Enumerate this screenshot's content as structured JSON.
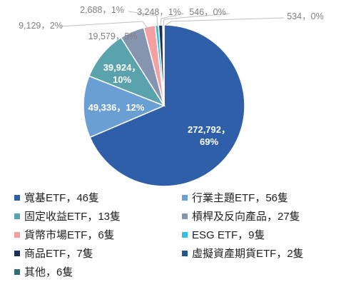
{
  "chart_data": {
    "type": "pie",
    "slices": [
      {
        "name": "寬基ETF，46隻",
        "value": 272792,
        "label": "272,792，\n69%",
        "color": "#2e5fa8"
      },
      {
        "name": "行業主題ETF，56隻",
        "value": 49336,
        "label": "49,336，12%",
        "color": "#6a9fd4"
      },
      {
        "name": "固定收益ETF，13隻",
        "value": 39924,
        "label": "39,924，\n10%",
        "color": "#5aa3ad"
      },
      {
        "name": "槓桿及反向產品，27隻",
        "value": 19579,
        "label": "19,579，5%",
        "color": "#8595b0"
      },
      {
        "name": "貨幣市場ETF，6隻",
        "value": 9129,
        "label": "9,129，2%",
        "color": "#f4a0a0"
      },
      {
        "name": "ESG ETF，9隻",
        "value": 2688,
        "label": "2,688，1%",
        "color": "#35c0e0"
      },
      {
        "name": "商品ETF，7隻",
        "value": 3248,
        "label": "3,248，1%",
        "color": "#1c2e57"
      },
      {
        "name": "虛擬資產期貨ETF，2隻",
        "value": 546,
        "label": "546，0%",
        "color": "#1f5a8a"
      },
      {
        "name": "其他，6隻",
        "value": 534,
        "label": "534，0%",
        "color": "#2f6e73"
      }
    ],
    "legend_position": "bottom"
  }
}
